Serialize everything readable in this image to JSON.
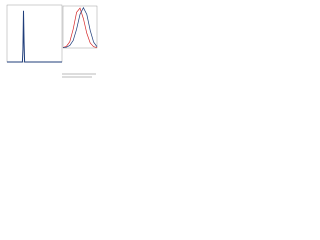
{
  "chart_data": [
    {
      "type": "line",
      "x": [
        0,
        28,
        29,
        30,
        31,
        32,
        100
      ],
      "series": [
        {
          "color": "#1f3d7a",
          "values": [
            0,
            0,
            22,
            90,
            35,
            0,
            0
          ]
        }
      ],
      "xlim": [
        0,
        100
      ],
      "ylim": [
        0,
        100
      ]
    },
    {
      "type": "line",
      "x": [
        0,
        1,
        2,
        3,
        4,
        5,
        6,
        7,
        8,
        9,
        10
      ],
      "series": [
        {
          "color": "#d62728",
          "values": [
            1,
            4,
            15,
            45,
            85,
            95,
            70,
            35,
            12,
            3,
            1
          ]
        },
        {
          "color": "#1f3d7a",
          "values": [
            1,
            2,
            6,
            18,
            45,
            80,
            96,
            80,
            42,
            14,
            3
          ]
        }
      ],
      "xlim": [
        0,
        10
      ],
      "ylim": [
        0,
        100
      ]
    }
  ]
}
